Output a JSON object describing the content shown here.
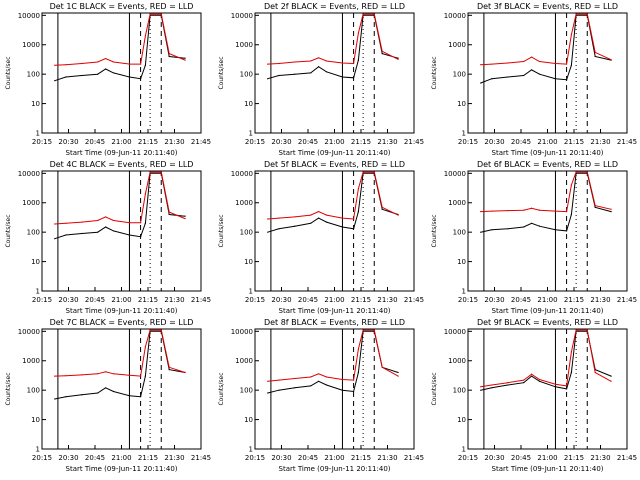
{
  "page": {
    "background": "#ffffff"
  },
  "colors": {
    "events": "#000000",
    "lld": "#e00000",
    "axes": "#000000"
  },
  "chart_data": [
    {
      "type": "line",
      "title": "Det 1C BLACK = Events, RED = LLD",
      "xlabel": "Start Time (09-Jun-11 20:11:40)",
      "ylabel": "Counts/sec",
      "x_ticks": [
        "20:15",
        "20:30",
        "20:45",
        "21:00",
        "21:15",
        "21:30",
        "21:45"
      ],
      "y_ticks": [
        "1",
        "10",
        "100",
        "1000",
        "10000"
      ],
      "xlim_minutes": [
        0,
        100
      ],
      "ylim": [
        1,
        12000
      ],
      "y_scale": "log",
      "x_minutes": [
        8,
        15,
        25,
        35,
        40,
        45,
        55,
        62,
        65,
        68,
        75,
        80,
        90
      ],
      "series": [
        {
          "name": "Events",
          "color": "#000000",
          "values": [
            60,
            80,
            90,
            100,
            150,
            110,
            80,
            70,
            200,
            10000,
            10000,
            400,
            350
          ]
        },
        {
          "name": "LLD",
          "color": "#e00000",
          "values": [
            200,
            210,
            230,
            260,
            340,
            260,
            220,
            220,
            2000,
            11000,
            11000,
            500,
            300
          ]
        }
      ],
      "vlines_solid": [
        10,
        55
      ],
      "vlines_dashed": [
        62,
        75
      ],
      "vlines_dotted": [
        68
      ]
    },
    {
      "type": "line",
      "title": "Det 2f BLACK = Events, RED = LLD",
      "xlabel": "Start Time (09-Jun-11 20:11:40)",
      "ylabel": "Counts/sec",
      "x_ticks": [
        "20:15",
        "20:30",
        "20:45",
        "21:00",
        "21:15",
        "21:30",
        "21:45"
      ],
      "y_ticks": [
        "1",
        "10",
        "100",
        "1000",
        "10000"
      ],
      "xlim_minutes": [
        0,
        100
      ],
      "ylim": [
        1,
        12000
      ],
      "y_scale": "log",
      "x_minutes": [
        8,
        15,
        25,
        35,
        40,
        45,
        55,
        62,
        65,
        68,
        75,
        80,
        90
      ],
      "series": [
        {
          "name": "Events",
          "color": "#000000",
          "values": [
            70,
            90,
            100,
            110,
            180,
            120,
            80,
            75,
            300,
            10000,
            10000,
            500,
            350
          ]
        },
        {
          "name": "LLD",
          "color": "#e00000",
          "values": [
            220,
            230,
            260,
            280,
            360,
            280,
            240,
            230,
            2500,
            11000,
            11000,
            600,
            320
          ]
        }
      ],
      "vlines_solid": [
        10,
        55
      ],
      "vlines_dashed": [
        62,
        75
      ],
      "vlines_dotted": [
        68
      ]
    },
    {
      "type": "line",
      "title": "Det 3f BLACK = Events, RED = LLD",
      "xlabel": "Start Time (09-Jun-11 20:11:40)",
      "ylabel": "Counts/sec",
      "x_ticks": [
        "20:15",
        "20:30",
        "20:45",
        "21:00",
        "21:15",
        "21:30",
        "21:45"
      ],
      "y_ticks": [
        "1",
        "10",
        "100",
        "1000",
        "10000"
      ],
      "xlim_minutes": [
        0,
        100
      ],
      "ylim": [
        1,
        12000
      ],
      "y_scale": "log",
      "x_minutes": [
        8,
        15,
        25,
        35,
        40,
        45,
        55,
        62,
        65,
        68,
        75,
        80,
        90
      ],
      "series": [
        {
          "name": "Events",
          "color": "#000000",
          "values": [
            50,
            70,
            80,
            90,
            140,
            100,
            70,
            65,
            200,
            10000,
            10000,
            400,
            300
          ]
        },
        {
          "name": "LLD",
          "color": "#e00000",
          "values": [
            210,
            220,
            240,
            270,
            380,
            270,
            230,
            220,
            2200,
            11000,
            11000,
            550,
            310
          ]
        }
      ],
      "vlines_solid": [
        10,
        55
      ],
      "vlines_dashed": [
        62,
        75
      ],
      "vlines_dotted": [
        68
      ]
    },
    {
      "type": "line",
      "title": "Det 4C BLACK = Events, RED = LLD",
      "xlabel": "Start Time (09-Jun-11 20:11:40)",
      "ylabel": "Counts/sec",
      "x_ticks": [
        "20:15",
        "20:30",
        "20:45",
        "21:00",
        "21:15",
        "21:30",
        "21:45"
      ],
      "y_ticks": [
        "1",
        "10",
        "100",
        "1000",
        "10000"
      ],
      "xlim_minutes": [
        0,
        100
      ],
      "ylim": [
        1,
        12000
      ],
      "y_scale": "log",
      "x_minutes": [
        8,
        15,
        25,
        35,
        40,
        45,
        55,
        62,
        65,
        68,
        75,
        80,
        90
      ],
      "series": [
        {
          "name": "Events",
          "color": "#000000",
          "values": [
            60,
            80,
            90,
            100,
            150,
            110,
            80,
            70,
            200,
            10000,
            10000,
            400,
            350
          ]
        },
        {
          "name": "LLD",
          "color": "#e00000",
          "values": [
            190,
            200,
            220,
            250,
            330,
            250,
            210,
            210,
            2000,
            11000,
            11000,
            480,
            290
          ]
        }
      ],
      "vlines_solid": [
        10,
        55
      ],
      "vlines_dashed": [
        62,
        75
      ],
      "vlines_dotted": [
        68
      ]
    },
    {
      "type": "line",
      "title": "Det 5f BLACK = Events, RED = LLD",
      "xlabel": "Start Time (09-Jun-11 20:11:40)",
      "ylabel": "Counts/sec",
      "x_ticks": [
        "20:15",
        "20:30",
        "20:45",
        "21:00",
        "21:15",
        "21:30",
        "21:45"
      ],
      "y_ticks": [
        "1",
        "10",
        "100",
        "1000",
        "10000"
      ],
      "xlim_minutes": [
        0,
        100
      ],
      "ylim": [
        1,
        12000
      ],
      "y_scale": "log",
      "x_minutes": [
        8,
        15,
        25,
        35,
        40,
        45,
        55,
        62,
        65,
        68,
        75,
        80,
        90
      ],
      "series": [
        {
          "name": "Events",
          "color": "#000000",
          "values": [
            100,
            130,
            160,
            200,
            300,
            220,
            150,
            130,
            500,
            10000,
            10000,
            600,
            400
          ]
        },
        {
          "name": "LLD",
          "color": "#e00000",
          "values": [
            280,
            300,
            330,
            380,
            500,
            380,
            300,
            280,
            3000,
            11000,
            11000,
            700,
            380
          ]
        }
      ],
      "vlines_solid": [
        10,
        55
      ],
      "vlines_dashed": [
        62,
        75
      ],
      "vlines_dotted": [
        68
      ]
    },
    {
      "type": "line",
      "title": "Det 6f BLACK = Events, RED = LLD",
      "xlabel": "Start Time (09-Jun-11 20:11:40)",
      "ylabel": "Counts/sec",
      "x_ticks": [
        "20:15",
        "20:30",
        "20:45",
        "21:00",
        "21:15",
        "21:30",
        "21:45"
      ],
      "y_ticks": [
        "1",
        "10",
        "100",
        "1000",
        "10000"
      ],
      "xlim_minutes": [
        0,
        100
      ],
      "ylim": [
        1,
        12000
      ],
      "y_scale": "log",
      "x_minutes": [
        8,
        15,
        25,
        35,
        40,
        45,
        55,
        62,
        65,
        68,
        75,
        80,
        90
      ],
      "series": [
        {
          "name": "Events",
          "color": "#000000",
          "values": [
            100,
            120,
            130,
            150,
            200,
            160,
            120,
            110,
            400,
            10000,
            10000,
            700,
            500
          ]
        },
        {
          "name": "LLD",
          "color": "#e00000",
          "values": [
            500,
            520,
            540,
            560,
            650,
            560,
            520,
            500,
            4000,
            11000,
            11000,
            800,
            600
          ]
        }
      ],
      "vlines_solid": [
        10,
        55
      ],
      "vlines_dashed": [
        62,
        75
      ],
      "vlines_dotted": [
        68
      ]
    },
    {
      "type": "line",
      "title": "Det 7C BLACK = Events, RED = LLD",
      "xlabel": "Start Time (09-Jun-11 20:11:40)",
      "ylabel": "Counts/sec",
      "x_ticks": [
        "20:15",
        "20:30",
        "20:45",
        "21:00",
        "21:15",
        "21:30",
        "21:45"
      ],
      "y_ticks": [
        "1",
        "10",
        "100",
        "1000",
        "10000"
      ],
      "xlim_minutes": [
        0,
        100
      ],
      "ylim": [
        1,
        12000
      ],
      "y_scale": "log",
      "x_minutes": [
        8,
        15,
        25,
        35,
        40,
        45,
        55,
        62,
        65,
        68,
        75,
        80,
        90
      ],
      "series": [
        {
          "name": "Events",
          "color": "#000000",
          "values": [
            50,
            60,
            70,
            80,
            120,
            90,
            65,
            60,
            300,
            10000,
            10000,
            500,
            400
          ]
        },
        {
          "name": "LLD",
          "color": "#e00000",
          "values": [
            300,
            310,
            330,
            360,
            420,
            360,
            320,
            300,
            3000,
            11000,
            11000,
            600,
            400
          ]
        }
      ],
      "vlines_solid": [
        10,
        55
      ],
      "vlines_dashed": [
        62,
        75
      ],
      "vlines_dotted": [
        68
      ]
    },
    {
      "type": "line",
      "title": "Det 8f BLACK = Events, RED = LLD",
      "xlabel": "Start Time (09-Jun-11 20:11:40)",
      "ylabel": "Counts/sec",
      "x_ticks": [
        "20:15",
        "20:30",
        "20:45",
        "21:00",
        "21:15",
        "21:30",
        "21:45"
      ],
      "y_ticks": [
        "1",
        "10",
        "100",
        "1000",
        "10000"
      ],
      "xlim_minutes": [
        0,
        100
      ],
      "ylim": [
        1,
        12000
      ],
      "y_scale": "log",
      "x_minutes": [
        8,
        15,
        25,
        35,
        40,
        45,
        55,
        62,
        65,
        68,
        75,
        80,
        90
      ],
      "series": [
        {
          "name": "Events",
          "color": "#000000",
          "values": [
            80,
            100,
            120,
            140,
            200,
            150,
            100,
            90,
            400,
            10000,
            10000,
            600,
            400
          ]
        },
        {
          "name": "LLD",
          "color": "#e00000",
          "values": [
            200,
            220,
            250,
            280,
            360,
            280,
            230,
            220,
            2500,
            11000,
            11000,
            600,
            300
          ]
        }
      ],
      "vlines_solid": [
        10,
        55
      ],
      "vlines_dashed": [
        62,
        75
      ],
      "vlines_dotted": [
        68
      ]
    },
    {
      "type": "line",
      "title": "Det 9f BLACK = Events, RED = LLD",
      "xlabel": "Start Time (09-Jun-11 20:11:40)",
      "ylabel": "Counts/sec",
      "x_ticks": [
        "20:15",
        "20:30",
        "20:45",
        "21:00",
        "21:15",
        "21:30",
        "21:45"
      ],
      "y_ticks": [
        "1",
        "10",
        "100",
        "1000",
        "10000"
      ],
      "xlim_minutes": [
        0,
        100
      ],
      "ylim": [
        1,
        12000
      ],
      "y_scale": "log",
      "x_minutes": [
        8,
        15,
        25,
        35,
        40,
        45,
        55,
        62,
        65,
        68,
        75,
        80,
        90
      ],
      "series": [
        {
          "name": "Events",
          "color": "#000000",
          "values": [
            100,
            120,
            150,
            180,
            300,
            200,
            130,
            110,
            400,
            10000,
            10000,
            500,
            300
          ]
        },
        {
          "name": "LLD",
          "color": "#e00000",
          "values": [
            130,
            150,
            180,
            220,
            350,
            230,
            160,
            140,
            2000,
            11000,
            11000,
            400,
            200
          ]
        }
      ],
      "vlines_solid": [
        10,
        55
      ],
      "vlines_dashed": [
        62,
        75
      ],
      "vlines_dotted": [
        68
      ]
    }
  ]
}
